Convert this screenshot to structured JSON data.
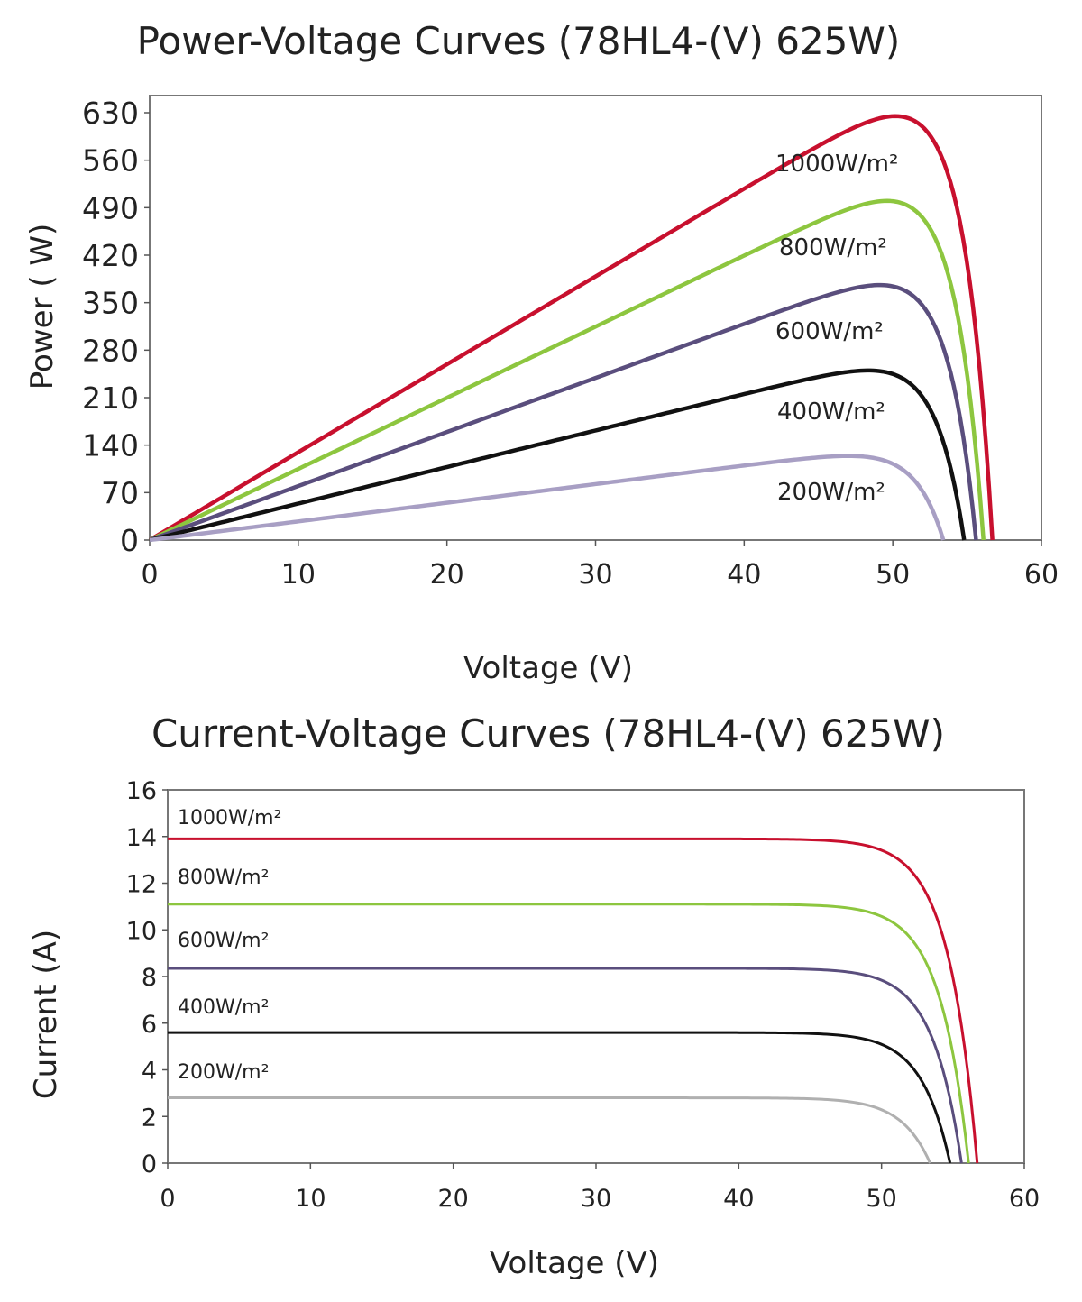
{
  "chart_data": [
    {
      "type": "line",
      "title": "Power-Voltage Curves (78HL4-(V) 625W)",
      "xlabel": "Voltage (V)",
      "ylabel": "Power ( W)",
      "xlim": [
        0,
        60
      ],
      "ylim": [
        0,
        630
      ],
      "x_ticks": [
        0,
        10,
        20,
        30,
        40,
        50,
        60
      ],
      "y_ticks": [
        0,
        70,
        140,
        210,
        280,
        350,
        420,
        490,
        560,
        630
      ],
      "grid": false,
      "series": [
        {
          "name": "1000W/m²",
          "color": "#c8102e",
          "isc": 13.9,
          "vmp": 47.2,
          "voc": 56.7,
          "pmax": 625
        },
        {
          "name": "800W/m²",
          "color": "#8dc63f",
          "isc": 11.1,
          "vmp": 47.2,
          "voc": 56.1,
          "pmax": 500
        },
        {
          "name": "600W/m²",
          "color": "#5a4e7d",
          "isc": 8.35,
          "vmp": 47.1,
          "voc": 55.6,
          "pmax": 376
        },
        {
          "name": "400W/m²",
          "color": "#111111",
          "isc": 5.6,
          "vmp": 47.0,
          "voc": 54.8,
          "pmax": 250
        },
        {
          "name": "200W/m²",
          "color": "#a89fc4",
          "isc": 2.8,
          "vmp": 46.8,
          "voc": 53.4,
          "pmax": 124
        }
      ]
    },
    {
      "type": "line",
      "title": "Current-Voltage Curves (78HL4-(V) 625W)",
      "xlabel": "Voltage (V)",
      "ylabel": "Current (A)",
      "xlim": [
        0,
        60
      ],
      "ylim": [
        0,
        16
      ],
      "x_ticks": [
        0,
        10,
        20,
        30,
        40,
        50,
        60
      ],
      "y_ticks": [
        0,
        2,
        4,
        6,
        8,
        10,
        12,
        14,
        16
      ],
      "grid": false,
      "series": [
        {
          "name": "1000W/m²",
          "color": "#c8102e",
          "isc": 13.9,
          "voc": 56.7
        },
        {
          "name": "800W/m²",
          "color": "#8dc63f",
          "isc": 11.1,
          "voc": 56.1
        },
        {
          "name": "600W/m²",
          "color": "#5a4e7d",
          "isc": 8.35,
          "voc": 55.6
        },
        {
          "name": "400W/m²",
          "color": "#111111",
          "isc": 5.6,
          "voc": 54.8
        },
        {
          "name": "200W/m²",
          "color": "#b0b0b0",
          "isc": 2.8,
          "voc": 53.4
        }
      ]
    }
  ]
}
